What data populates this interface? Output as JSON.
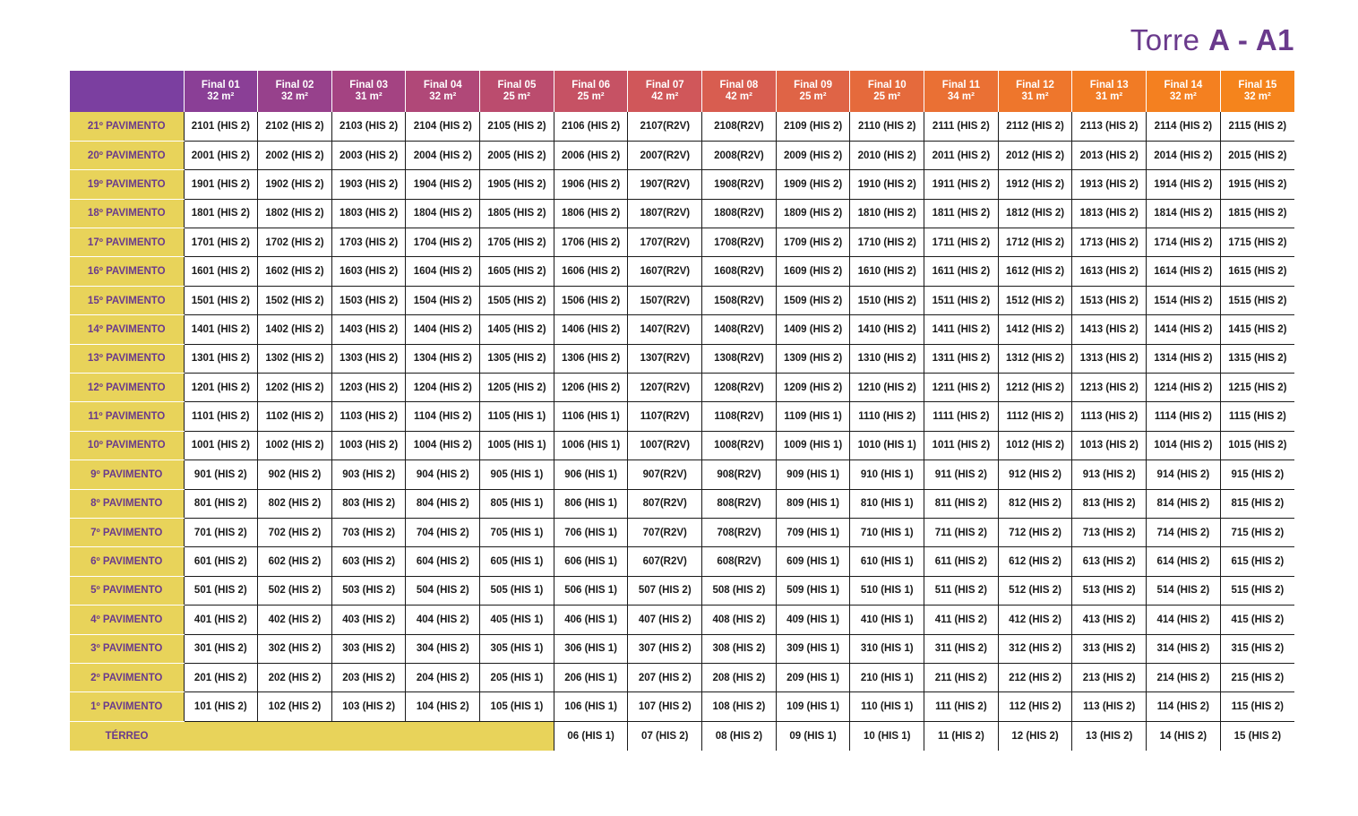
{
  "title": {
    "prefix": "Torre ",
    "tower": "A",
    "separator": " - ",
    "block": "A1"
  },
  "header_colors": [
    "#7b3fa0",
    "#8a3f96",
    "#97418c",
    "#a44382",
    "#b04878",
    "#bb4c6e",
    "#c65264",
    "#d0575a",
    "#d85d50",
    "#df6446",
    "#e56a3c",
    "#ea7034",
    "#ee762c",
    "#f17b25",
    "#f48020",
    "#f5841c"
  ],
  "columns": [
    {
      "label": "Final 01",
      "area": "32 m²"
    },
    {
      "label": "Final 02",
      "area": "32 m²"
    },
    {
      "label": "Final 03",
      "area": "31 m²"
    },
    {
      "label": "Final 04",
      "area": "32 m²"
    },
    {
      "label": "Final 05",
      "area": "25 m²"
    },
    {
      "label": "Final 06",
      "area": "25 m²"
    },
    {
      "label": "Final 07",
      "area": "42 m²"
    },
    {
      "label": "Final 08",
      "area": "42 m²"
    },
    {
      "label": "Final 09",
      "area": "25 m²"
    },
    {
      "label": "Final 10",
      "area": "25 m²"
    },
    {
      "label": "Final 11",
      "area": "34 m²"
    },
    {
      "label": "Final 12",
      "area": "31 m²"
    },
    {
      "label": "Final 13",
      "area": "31 m²"
    },
    {
      "label": "Final 14",
      "area": "32 m²"
    },
    {
      "label": "Final 15",
      "area": "32 m²"
    }
  ],
  "rows": [
    {
      "floor": "21º PAVIMENTO",
      "cells": [
        "2101 (HIS 2)",
        "2102 (HIS 2)",
        "2103 (HIS 2)",
        "2104 (HIS 2)",
        "2105 (HIS 2)",
        "2106 (HIS 2)",
        "2107(R2V)",
        "2108(R2V)",
        "2109 (HIS 2)",
        "2110 (HIS 2)",
        "2111 (HIS 2)",
        "2112 (HIS 2)",
        "2113 (HIS 2)",
        "2114 (HIS 2)",
        "2115 (HIS 2)"
      ]
    },
    {
      "floor": "20º PAVIMENTO",
      "cells": [
        "2001 (HIS 2)",
        "2002 (HIS 2)",
        "2003 (HIS 2)",
        "2004 (HIS 2)",
        "2005 (HIS 2)",
        "2006 (HIS 2)",
        "2007(R2V)",
        "2008(R2V)",
        "2009 (HIS 2)",
        "2010 (HIS 2)",
        "2011 (HIS 2)",
        "2012 (HIS 2)",
        "2013 (HIS 2)",
        "2014 (HIS 2)",
        "2015 (HIS 2)"
      ]
    },
    {
      "floor": "19º PAVIMENTO",
      "cells": [
        "1901 (HIS 2)",
        "1902 (HIS 2)",
        "1903 (HIS 2)",
        "1904 (HIS 2)",
        "1905 (HIS 2)",
        "1906 (HIS 2)",
        "1907(R2V)",
        "1908(R2V)",
        "1909 (HIS 2)",
        "1910 (HIS 2)",
        "1911 (HIS 2)",
        "1912 (HIS 2)",
        "1913 (HIS 2)",
        "1914 (HIS 2)",
        "1915 (HIS 2)"
      ]
    },
    {
      "floor": "18º PAVIMENTO",
      "cells": [
        "1801 (HIS 2)",
        "1802 (HIS 2)",
        "1803 (HIS 2)",
        "1804 (HIS 2)",
        "1805 (HIS 2)",
        "1806 (HIS 2)",
        "1807(R2V)",
        "1808(R2V)",
        "1809 (HIS 2)",
        "1810 (HIS 2)",
        "1811 (HIS 2)",
        "1812 (HIS 2)",
        "1813 (HIS 2)",
        "1814 (HIS 2)",
        "1815 (HIS 2)"
      ]
    },
    {
      "floor": "17º PAVIMENTO",
      "cells": [
        "1701 (HIS 2)",
        "1702 (HIS 2)",
        "1703 (HIS 2)",
        "1704 (HIS 2)",
        "1705 (HIS 2)",
        "1706 (HIS 2)",
        "1707(R2V)",
        "1708(R2V)",
        "1709 (HIS 2)",
        "1710 (HIS 2)",
        "1711 (HIS 2)",
        "1712 (HIS 2)",
        "1713 (HIS 2)",
        "1714 (HIS 2)",
        "1715 (HIS 2)"
      ]
    },
    {
      "floor": "16º PAVIMENTO",
      "cells": [
        "1601 (HIS 2)",
        "1602 (HIS 2)",
        "1603 (HIS 2)",
        "1604 (HIS 2)",
        "1605 (HIS 2)",
        "1606 (HIS 2)",
        "1607(R2V)",
        "1608(R2V)",
        "1609 (HIS 2)",
        "1610 (HIS 2)",
        "1611 (HIS 2)",
        "1612 (HIS 2)",
        "1613 (HIS 2)",
        "1614 (HIS 2)",
        "1615 (HIS 2)"
      ]
    },
    {
      "floor": "15º PAVIMENTO",
      "cells": [
        "1501 (HIS 2)",
        "1502 (HIS 2)",
        "1503 (HIS 2)",
        "1504 (HIS 2)",
        "1505 (HIS 2)",
        "1506 (HIS 2)",
        "1507(R2V)",
        "1508(R2V)",
        "1509 (HIS 2)",
        "1510 (HIS 2)",
        "1511 (HIS 2)",
        "1512 (HIS 2)",
        "1513 (HIS 2)",
        "1514 (HIS 2)",
        "1515 (HIS 2)"
      ]
    },
    {
      "floor": "14º PAVIMENTO",
      "cells": [
        "1401 (HIS 2)",
        "1402 (HIS 2)",
        "1403 (HIS 2)",
        "1404 (HIS 2)",
        "1405 (HIS 2)",
        "1406 (HIS 2)",
        "1407(R2V)",
        "1408(R2V)",
        "1409 (HIS 2)",
        "1410 (HIS 2)",
        "1411 (HIS 2)",
        "1412 (HIS 2)",
        "1413 (HIS 2)",
        "1414 (HIS 2)",
        "1415 (HIS 2)"
      ]
    },
    {
      "floor": "13º PAVIMENTO",
      "cells": [
        "1301 (HIS 2)",
        "1302 (HIS 2)",
        "1303 (HIS 2)",
        "1304 (HIS 2)",
        "1305 (HIS 2)",
        "1306 (HIS 2)",
        "1307(R2V)",
        "1308(R2V)",
        "1309 (HIS 2)",
        "1310 (HIS 2)",
        "1311 (HIS 2)",
        "1312 (HIS 2)",
        "1313 (HIS 2)",
        "1314 (HIS 2)",
        "1315 (HIS 2)"
      ]
    },
    {
      "floor": "12º PAVIMENTO",
      "cells": [
        "1201 (HIS 2)",
        "1202 (HIS 2)",
        "1203 (HIS 2)",
        "1204 (HIS 2)",
        "1205 (HIS 2)",
        "1206 (HIS 2)",
        "1207(R2V)",
        "1208(R2V)",
        "1209 (HIS 2)",
        "1210 (HIS 2)",
        "1211 (HIS 2)",
        "1212 (HIS 2)",
        "1213 (HIS 2)",
        "1214 (HIS 2)",
        "1215 (HIS 2)"
      ]
    },
    {
      "floor": "11º PAVIMENTO",
      "cells": [
        "1101 (HIS 2)",
        "1102 (HIS 2)",
        "1103 (HIS 2)",
        "1104 (HIS 2)",
        "1105 (HIS 1)",
        "1106 (HIS 1)",
        "1107(R2V)",
        "1108(R2V)",
        "1109 (HIS 1)",
        "1110 (HIS 2)",
        "1111 (HIS 2)",
        "1112 (HIS 2)",
        "1113 (HIS 2)",
        "1114 (HIS 2)",
        "1115 (HIS 2)"
      ]
    },
    {
      "floor": "10º PAVIMENTO",
      "cells": [
        "1001 (HIS 2)",
        "1002 (HIS 2)",
        "1003 (HIS 2)",
        "1004 (HIS 2)",
        "1005 (HIS 1)",
        "1006 (HIS 1)",
        "1007(R2V)",
        "1008(R2V)",
        "1009 (HIS 1)",
        "1010 (HIS 1)",
        "1011 (HIS 2)",
        "1012 (HIS 2)",
        "1013 (HIS 2)",
        "1014 (HIS 2)",
        "1015 (HIS 2)"
      ]
    },
    {
      "floor": "9º PAVIMENTO",
      "cells": [
        "901 (HIS 2)",
        "902 (HIS 2)",
        "903 (HIS 2)",
        "904 (HIS 2)",
        "905 (HIS 1)",
        "906 (HIS 1)",
        "907(R2V)",
        "908(R2V)",
        "909 (HIS 1)",
        "910 (HIS 1)",
        "911 (HIS 2)",
        "912 (HIS 2)",
        "913 (HIS 2)",
        "914 (HIS 2)",
        "915 (HIS 2)"
      ]
    },
    {
      "floor": "8º PAVIMENTO",
      "cells": [
        "801 (HIS 2)",
        "802 (HIS 2)",
        "803 (HIS 2)",
        "804 (HIS 2)",
        "805 (HIS 1)",
        "806 (HIS 1)",
        "807(R2V)",
        "808(R2V)",
        "809 (HIS 1)",
        "810 (HIS 1)",
        "811 (HIS 2)",
        "812 (HIS 2)",
        "813 (HIS 2)",
        "814 (HIS 2)",
        "815 (HIS 2)"
      ]
    },
    {
      "floor": "7º PAVIMENTO",
      "cells": [
        "701 (HIS 2)",
        "702 (HIS 2)",
        "703 (HIS 2)",
        "704 (HIS 2)",
        "705 (HIS 1)",
        "706 (HIS 1)",
        "707(R2V)",
        "708(R2V)",
        "709 (HIS 1)",
        "710 (HIS 1)",
        "711 (HIS 2)",
        "712 (HIS 2)",
        "713 (HIS 2)",
        "714 (HIS 2)",
        "715 (HIS 2)"
      ]
    },
    {
      "floor": "6º PAVIMENTO",
      "cells": [
        "601 (HIS 2)",
        "602 (HIS 2)",
        "603 (HIS 2)",
        "604 (HIS 2)",
        "605 (HIS 1)",
        "606 (HIS 1)",
        "607(R2V)",
        "608(R2V)",
        "609 (HIS 1)",
        "610 (HIS 1)",
        "611 (HIS 2)",
        "612 (HIS 2)",
        "613 (HIS 2)",
        "614 (HIS 2)",
        "615 (HIS 2)"
      ]
    },
    {
      "floor": "5º PAVIMENTO",
      "cells": [
        "501 (HIS 2)",
        "502 (HIS 2)",
        "503 (HIS 2)",
        "504 (HIS 2)",
        "505 (HIS 1)",
        "506 (HIS 1)",
        "507 (HIS 2)",
        "508 (HIS 2)",
        "509 (HIS 1)",
        "510 (HIS 1)",
        "511 (HIS 2)",
        "512 (HIS 2)",
        "513 (HIS 2)",
        "514 (HIS 2)",
        "515 (HIS 2)"
      ]
    },
    {
      "floor": "4º PAVIMENTO",
      "cells": [
        "401 (HIS 2)",
        "402 (HIS 2)",
        "403 (HIS 2)",
        "404 (HIS 2)",
        "405 (HIS 1)",
        "406 (HIS 1)",
        "407 (HIS 2)",
        "408 (HIS 2)",
        "409 (HIS 1)",
        "410 (HIS 1)",
        "411 (HIS 2)",
        "412 (HIS 2)",
        "413 (HIS 2)",
        "414 (HIS 2)",
        "415 (HIS 2)"
      ]
    },
    {
      "floor": "3º PAVIMENTO",
      "cells": [
        "301 (HIS 2)",
        "302 (HIS 2)",
        "303 (HIS 2)",
        "304 (HIS 2)",
        "305 (HIS 1)",
        "306 (HIS 1)",
        "307 (HIS 2)",
        "308 (HIS 2)",
        "309 (HIS 1)",
        "310 (HIS 1)",
        "311 (HIS 2)",
        "312 (HIS 2)",
        "313 (HIS 2)",
        "314 (HIS 2)",
        "315 (HIS 2)"
      ]
    },
    {
      "floor": "2º PAVIMENTO",
      "cells": [
        "201 (HIS 2)",
        "202 (HIS 2)",
        "203 (HIS 2)",
        "204 (HIS 2)",
        "205 (HIS 1)",
        "206 (HIS 1)",
        "207 (HIS 2)",
        "208 (HIS 2)",
        "209 (HIS 1)",
        "210 (HIS 1)",
        "211 (HIS 2)",
        "212 (HIS 2)",
        "213 (HIS 2)",
        "214 (HIS 2)",
        "215 (HIS 2)"
      ]
    },
    {
      "floor": "1º PAVIMENTO",
      "cells": [
        "101 (HIS 2)",
        "102 (HIS 2)",
        "103 (HIS 2)",
        "104 (HIS 2)",
        "105 (HIS 1)",
        "106 (HIS 1)",
        "107 (HIS 2)",
        "108 (HIS 2)",
        "109 (HIS 1)",
        "110 (HIS 1)",
        "111 (HIS 2)",
        "112 (HIS 2)",
        "113 (HIS 2)",
        "114 (HIS 2)",
        "115 (HIS 2)"
      ]
    }
  ],
  "ground": {
    "floor": "TÉRREO",
    "empty_columns": 5,
    "cells": [
      "06 (HIS 1)",
      "07 (HIS 2)",
      "08 (HIS 2)",
      "09 (HIS 1)",
      "10 (HIS 1)",
      "11 (HIS 2)",
      "12 (HIS 2)",
      "13 (HIS 2)",
      "14 (HIS 2)",
      "15 (HIS 2)"
    ]
  }
}
